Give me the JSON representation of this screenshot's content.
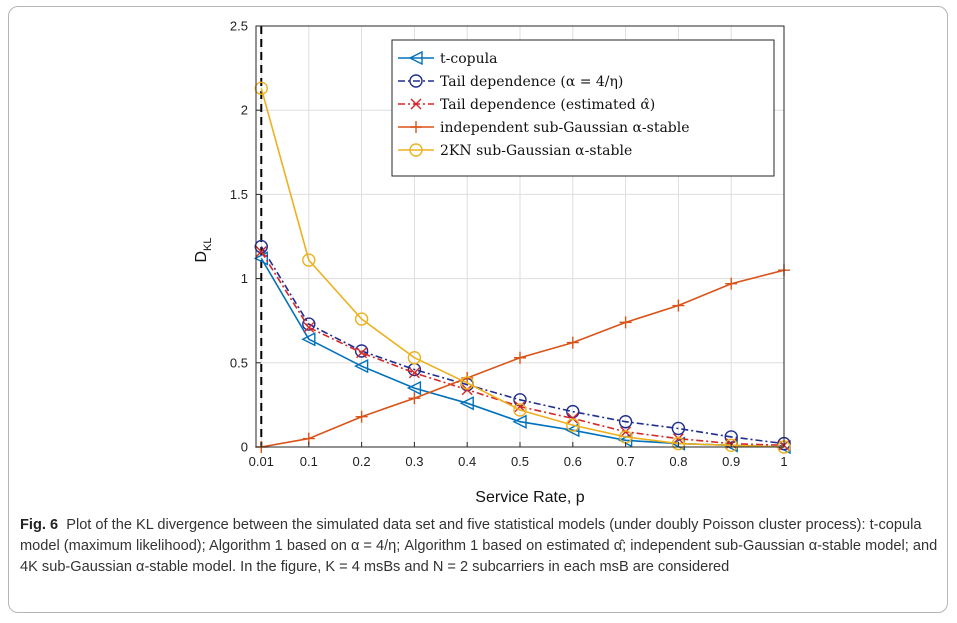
{
  "chart_data": {
    "type": "line",
    "xlabel": "Service Rate, p",
    "ylabel_main": "D",
    "ylabel_sub": "KL",
    "xlim": [
      0,
      1
    ],
    "ylim": [
      0,
      2.5
    ],
    "xticks": [
      {
        "v": 0.01,
        "label": "0.01"
      },
      {
        "v": 0.1,
        "label": "0.1"
      },
      {
        "v": 0.2,
        "label": "0.2"
      },
      {
        "v": 0.3,
        "label": "0.3"
      },
      {
        "v": 0.4,
        "label": "0.4"
      },
      {
        "v": 0.5,
        "label": "0.5"
      },
      {
        "v": 0.6,
        "label": "0.6"
      },
      {
        "v": 0.7,
        "label": "0.7"
      },
      {
        "v": 0.8,
        "label": "0.8"
      },
      {
        "v": 0.9,
        "label": "0.9"
      },
      {
        "v": 1.0,
        "label": "1"
      }
    ],
    "yticks": [
      {
        "v": 0,
        "label": "0"
      },
      {
        "v": 0.5,
        "label": "0.5"
      },
      {
        "v": 1,
        "label": "1"
      },
      {
        "v": 1.5,
        "label": "1.5"
      },
      {
        "v": 2,
        "label": "2"
      },
      {
        "v": 2.5,
        "label": "2.5"
      }
    ],
    "grid": true,
    "vline_x": 0.01,
    "legend_position": "top-right",
    "x": [
      0.01,
      0.1,
      0.2,
      0.3,
      0.4,
      0.5,
      0.6,
      0.7,
      0.8,
      0.9,
      1.0
    ],
    "series": [
      {
        "name": "t-copula",
        "color": "#0072BD",
        "dash": "solid",
        "marker": "triangle-left",
        "values": [
          1.12,
          0.64,
          0.48,
          0.35,
          0.26,
          0.15,
          0.1,
          0.04,
          0.02,
          0.01,
          0.0
        ]
      },
      {
        "name": "Tail dependence (α = 4/η)",
        "color": "#1F2E8F",
        "dash": "dashdot",
        "marker": "circle",
        "values": [
          1.19,
          0.73,
          0.57,
          0.46,
          0.37,
          0.28,
          0.21,
          0.15,
          0.11,
          0.06,
          0.02
        ]
      },
      {
        "name": "Tail dependence (estimated α̂)",
        "color": "#D62728",
        "dash": "dashdot",
        "marker": "x",
        "values": [
          1.16,
          0.71,
          0.56,
          0.44,
          0.34,
          0.24,
          0.17,
          0.09,
          0.05,
          0.02,
          0.01
        ]
      },
      {
        "name": "independent sub-Gaussian α-stable",
        "color": "#D95319",
        "dash": "solid",
        "marker": "plus",
        "values": [
          0.0,
          0.05,
          0.18,
          0.29,
          0.41,
          0.53,
          0.62,
          0.74,
          0.84,
          0.97,
          1.05
        ]
      },
      {
        "name": "2KN sub-Gaussian α-stable",
        "color": "#EDB120",
        "dash": "solid",
        "marker": "circle",
        "values": [
          2.13,
          1.11,
          0.76,
          0.53,
          0.38,
          0.22,
          0.13,
          0.06,
          0.02,
          0.01,
          0.0
        ]
      }
    ]
  },
  "caption": {
    "label": "Fig. 6",
    "text": "Plot of the KL divergence between the simulated data set and five statistical models (under doubly Poisson cluster process): t-copula model (maximum likelihood); Algorithm 1 based on α = 4/η; Algorithm 1 based on estimated α̂; independent sub-Gaussian α-stable model; and 4K sub-Gaussian α-stable model. In the figure, K = 4 msBs and N = 2 subcarriers in each msB are considered"
  }
}
